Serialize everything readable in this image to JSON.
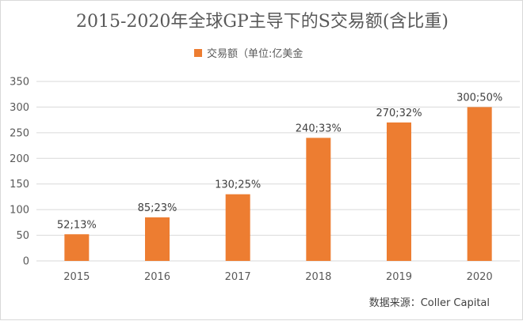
{
  "chart_data": {
    "type": "bar",
    "title": "2015-2020年全球GP主导下的S交易额(含比重)",
    "legend": {
      "position": "top",
      "entries": [
        "交易额（单位:亿美金"
      ]
    },
    "categories": [
      "2015",
      "2016",
      "2017",
      "2018",
      "2019",
      "2020"
    ],
    "series": [
      {
        "name": "交易额（单位:亿美金",
        "values": [
          52,
          85,
          130,
          240,
          270,
          300
        ],
        "color": "#ed7d31",
        "data_labels": [
          "52;13%",
          "85;23%",
          "130;25%",
          "240;33%",
          "270;32%",
          "300;50%"
        ]
      }
    ],
    "ylim": [
      0,
      350
    ],
    "yticks": [
      0,
      50,
      100,
      150,
      200,
      250,
      300,
      350
    ],
    "grid": {
      "horizontal": true,
      "vertical": false,
      "color": "#d9d9d9"
    },
    "xlabel": "",
    "ylabel": "",
    "source": "数据来源：Coller Capital"
  }
}
